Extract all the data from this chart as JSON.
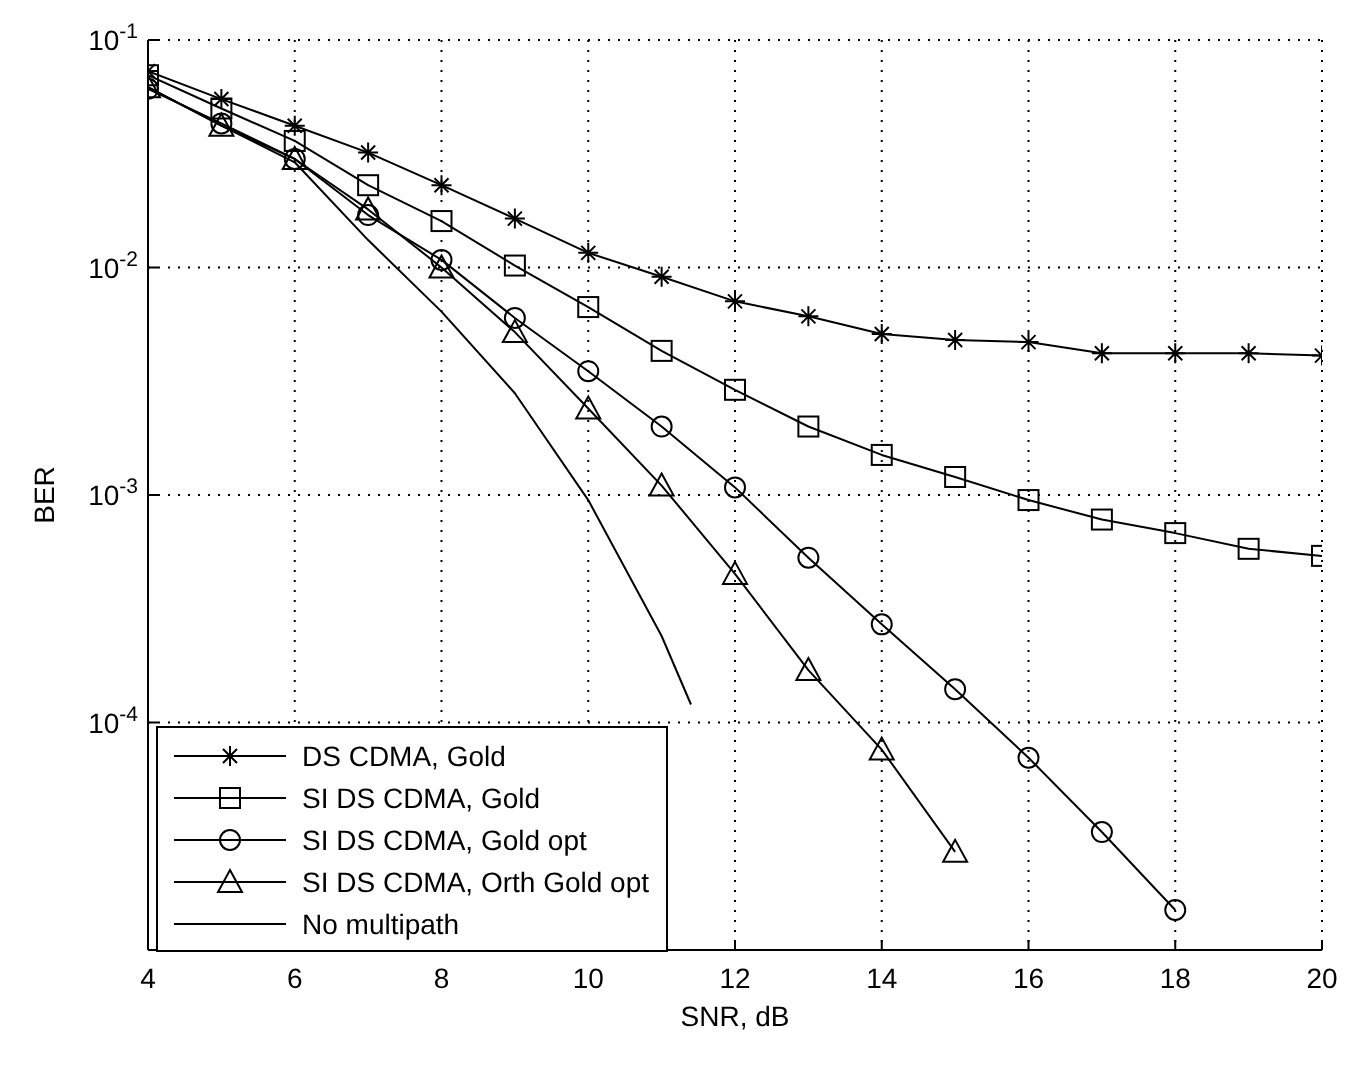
{
  "chart_data": {
    "type": "line",
    "xlabel": "SNR, dB",
    "ylabel": "BER",
    "log": "y",
    "grid": true,
    "legend": "bottom left",
    "line_style": "solid",
    "xlim": [
      4,
      20
    ],
    "xticks": [
      4,
      6,
      8,
      10,
      12,
      14,
      16,
      18,
      20
    ],
    "ylim": [
      1e-05,
      0.1
    ],
    "yticks": [
      {
        "value": 0.0001,
        "label": "10$^{-4}$"
      },
      {
        "value": 0.001,
        "label": "10$^{-3}$"
      },
      {
        "value": 0.01,
        "label": "10$^{-2}$"
      },
      {
        "value": 0.1,
        "label": "10$^{-1}$"
      }
    ],
    "series": [
      {
        "name": "DS CDMA, Gold",
        "color": "#000000",
        "marker": "cross",
        "x": [
          4,
          5,
          6,
          7,
          8,
          9,
          10,
          11,
          12,
          13,
          14,
          15,
          16,
          17,
          18,
          19,
          20
        ],
        "values": [
          0.073,
          0.055,
          0.042,
          0.032,
          0.023,
          0.0164,
          0.0116,
          0.0091,
          0.0071,
          0.0061,
          0.0051,
          0.0048,
          0.0047,
          0.0042,
          0.0042,
          0.0042,
          0.0041
        ]
      },
      {
        "name": "SI DS CDMA, Gold",
        "color": "#000000",
        "marker": "square",
        "x": [
          4,
          5,
          6,
          7,
          8,
          9,
          10,
          11,
          12,
          13,
          14,
          15,
          16,
          17,
          18,
          19,
          20
        ],
        "values": [
          0.07,
          0.05,
          0.036,
          0.023,
          0.016,
          0.0102,
          0.0067,
          0.0043,
          0.0029,
          0.002,
          0.0015,
          0.0012,
          0.00095,
          0.00078,
          0.00068,
          0.00058,
          0.00054
        ]
      },
      {
        "name": "SI DS CDMA, Gold opt",
        "color": "#000000",
        "marker": "circle",
        "x": [
          4,
          5,
          6,
          7,
          8,
          9,
          10,
          11,
          12,
          13,
          14,
          15,
          16,
          17,
          18
        ],
        "values": [
          0.061,
          0.043,
          0.03,
          0.017,
          0.0108,
          0.006,
          0.0035,
          0.002,
          0.00108,
          0.00053,
          0.00027,
          0.00014,
          7e-05,
          3.3e-05,
          1.5e-05
        ]
      },
      {
        "name": "SI DS CDMA, Orth Gold opt",
        "color": "#000000",
        "marker": "triangle",
        "x": [
          4,
          5,
          6,
          7,
          8,
          9,
          10,
          11,
          12,
          13,
          14,
          15
        ],
        "values": [
          0.062,
          0.042,
          0.03,
          0.018,
          0.01,
          0.0052,
          0.0024,
          0.0011,
          0.00045,
          0.00017,
          7.6e-05,
          2.7e-05
        ]
      },
      {
        "name": "No multipath",
        "color": "#000000",
        "marker": "none",
        "x": [
          4,
          5,
          6,
          7,
          8,
          9,
          10,
          11,
          11.4
        ],
        "values": [
          0.062,
          0.042,
          0.029,
          0.0132,
          0.0064,
          0.0028,
          0.00095,
          0.00024,
          0.00012
        ]
      }
    ]
  }
}
